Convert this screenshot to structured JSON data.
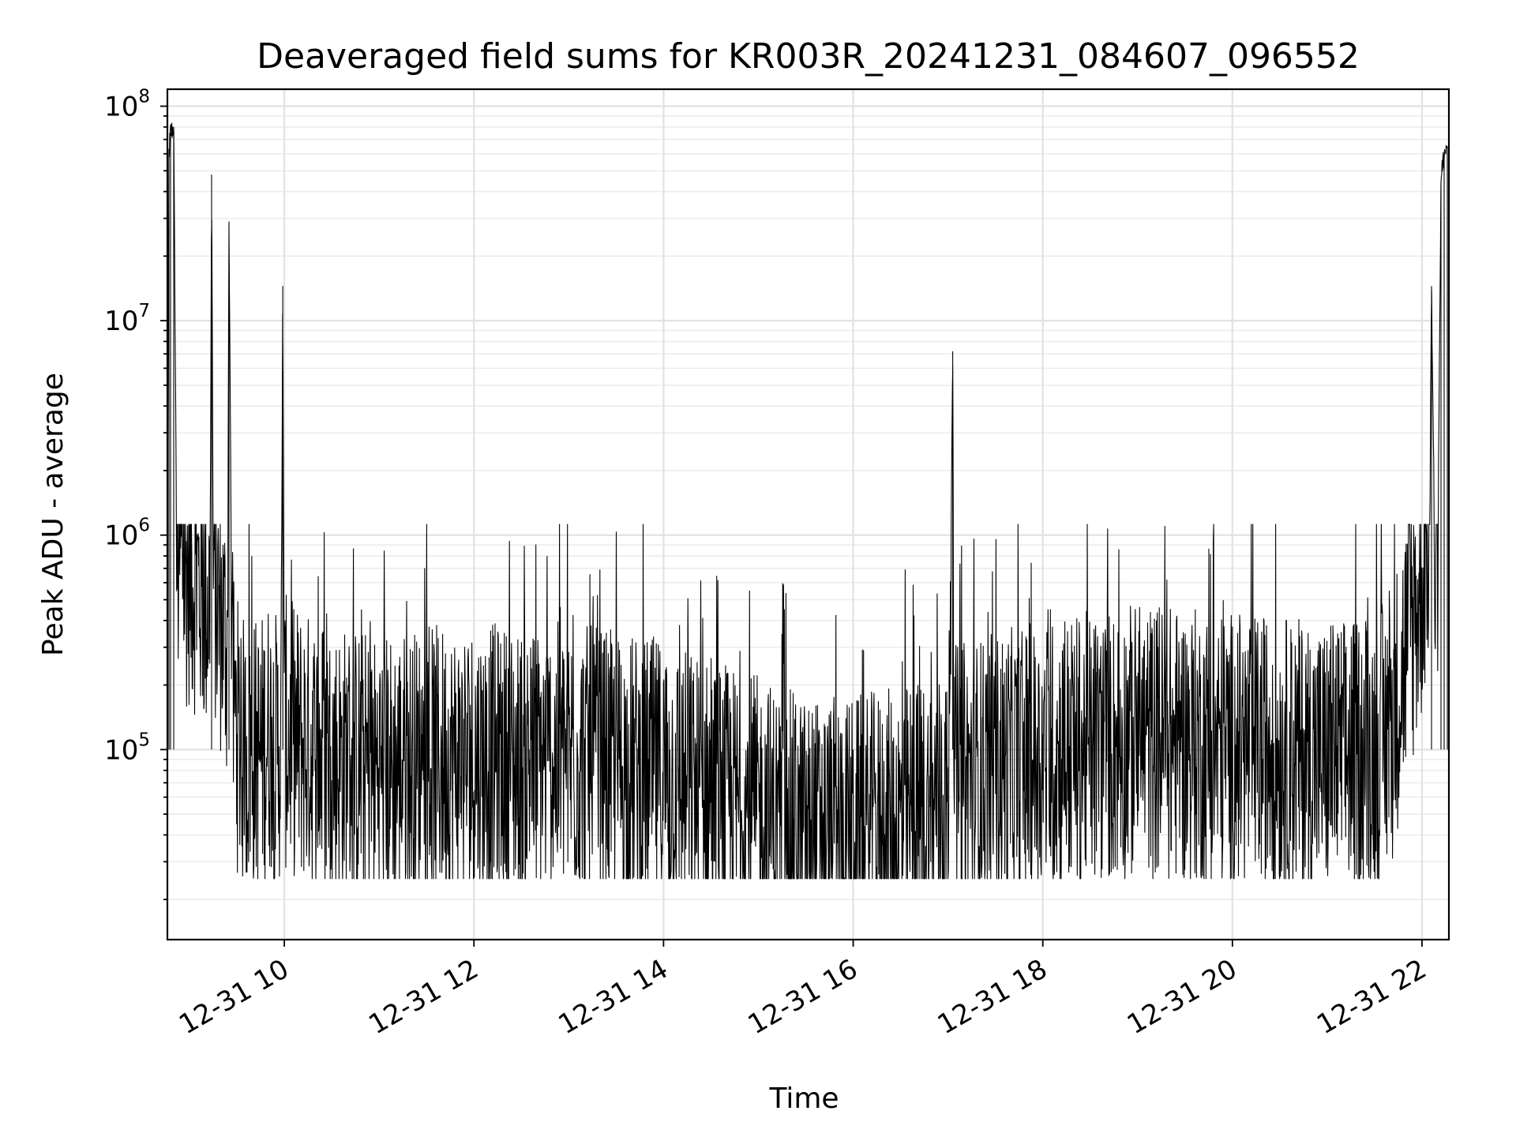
{
  "chart_data": {
    "type": "line",
    "title": "Deaveraged field sums for KR003R_20241231_084607_096552",
    "xlabel": "Time",
    "ylabel": "Peak ADU - average",
    "x_tick_labels": [
      "12-31 10",
      "12-31 12",
      "12-31 14",
      "12-31 16",
      "12-31 18",
      "12-31 20",
      "12-31 22"
    ],
    "x_tick_values": [
      "2024-12-31T10:00",
      "2024-12-31T12:00",
      "2024-12-31T14:00",
      "2024-12-31T16:00",
      "2024-12-31T18:00",
      "2024-12-31T20:00",
      "2024-12-31T22:00"
    ],
    "x_tick_rotation_deg": 30,
    "xlim": [
      "2024-12-31T08:46",
      "2024-12-31T22:17"
    ],
    "y_scale": "log",
    "y_tick_labels": [
      {
        "base": "10",
        "exp": "5",
        "value": 100000
      },
      {
        "base": "10",
        "exp": "6",
        "value": 1000000
      },
      {
        "base": "10",
        "exp": "7",
        "value": 10000000
      },
      {
        "base": "10",
        "exp": "8",
        "value": 100000000
      }
    ],
    "ylim": [
      13000,
      120000000
    ],
    "grid": true,
    "legend": "none",
    "series": [
      {
        "color": "#000000",
        "x": [
          "2024-12-31T08:46",
          "2024-12-31T08:47",
          "2024-12-31T08:48",
          "2024-12-31T08:50",
          "2024-12-31T08:52",
          "2024-12-31T08:54",
          "2024-12-31T08:55",
          "2024-12-31T08:57",
          "2024-12-31T09:00",
          "2024-12-31T09:05",
          "2024-12-31T09:10",
          "2024-12-31T09:13",
          "2024-12-31T09:14",
          "2024-12-31T09:15",
          "2024-12-31T09:17",
          "2024-12-31T09:20",
          "2024-12-31T09:24",
          "2024-12-31T09:25",
          "2024-12-31T09:27",
          "2024-12-31T09:30",
          "2024-12-31T09:35",
          "2024-12-31T09:38",
          "2024-12-31T09:45",
          "2024-12-31T09:50",
          "2024-12-31T09:55",
          "2024-12-31T09:58",
          "2024-12-31T09:59",
          "2024-12-31T10:00",
          "2024-12-31T10:15",
          "2024-12-31T10:30",
          "2024-12-31T11:00",
          "2024-12-31T11:30",
          "2024-12-31T12:00",
          "2024-12-31T12:30",
          "2024-12-31T13:00",
          "2024-12-31T13:30",
          "2024-12-31T14:00",
          "2024-12-31T14:30",
          "2024-12-31T15:00",
          "2024-12-31T15:30",
          "2024-12-31T16:00",
          "2024-12-31T16:30",
          "2024-12-31T17:00",
          "2024-12-31T17:03",
          "2024-12-31T17:04",
          "2024-12-31T17:05",
          "2024-12-31T17:30",
          "2024-12-31T18:00",
          "2024-12-31T18:30",
          "2024-12-31T19:00",
          "2024-12-31T19:30",
          "2024-12-31T20:00",
          "2024-12-31T20:30",
          "2024-12-31T21:00",
          "2024-12-31T21:30",
          "2024-12-31T21:40",
          "2024-12-31T21:50",
          "2024-12-31T21:55",
          "2024-12-31T21:58",
          "2024-12-31T22:00",
          "2024-12-31T22:02",
          "2024-12-31T22:04",
          "2024-12-31T22:05",
          "2024-12-31T22:06",
          "2024-12-31T22:08",
          "2024-12-31T22:10",
          "2024-12-31T22:12",
          "2024-12-31T22:14",
          "2024-12-31T22:16"
        ],
        "y": [
          1000000,
          60000000,
          75000000,
          80000000,
          700000,
          800000,
          750000,
          650000,
          700000,
          600000,
          500000,
          500000,
          48000000,
          700000,
          500000,
          400000,
          300000,
          29000000,
          200000,
          120000,
          90000,
          100000,
          95000,
          120000,
          100000,
          110000,
          14500000,
          120000,
          100000,
          90000,
          80000,
          85000,
          90000,
          85000,
          90000,
          80000,
          75000,
          60000,
          50000,
          40000,
          40000,
          45000,
          55000,
          7200000,
          60000,
          70000,
          80000,
          90000,
          100000,
          110000,
          105000,
          100000,
          95000,
          90000,
          100000,
          120000,
          300000,
          400000,
          500000,
          600000,
          800000,
          1000000,
          1200000,
          14500000,
          900000,
          1000000,
          45000000,
          60000000,
          65000000
        ],
        "noise_band": {
          "low": 25000,
          "high": 1000000
        }
      }
    ]
  }
}
